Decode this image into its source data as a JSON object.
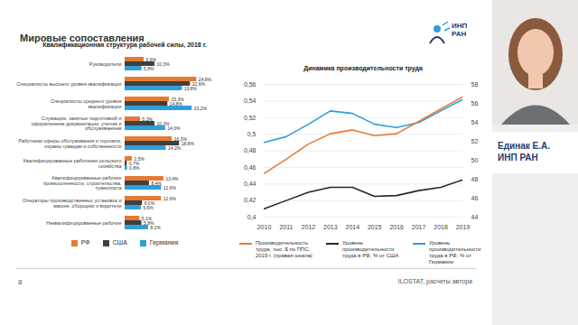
{
  "slide": {
    "title": "Мировые сопоставления",
    "logo": "ИНП РАН",
    "page": "8",
    "source": "ILOSTAT, расчеты автора",
    "speaker": {
      "name": "Единак Е.А.",
      "org": "ИНП РАН"
    }
  },
  "chart_data": [
    {
      "type": "bar",
      "orientation": "horizontal",
      "title": "Квалификационная структура рабочей силы, 2018 г.",
      "categories": [
        "Руководители",
        "Специалисты высшего уровня квалификации",
        "Специалисты среднего уровня квалификации",
        "Служащие, занятые подготовкой и оформлением документации, учетом и обслуживанием",
        "Работники сферы обслуживания и торговли, охраны граждан и собственности",
        "Квалифицированные работники сельского хозяйства",
        "Квалифицированные рабочие промышленности, строительства, транспорта",
        "Операторы производственных установок и машин, сборщики и водители",
        "Неквалифицированные рабочие"
      ],
      "series": [
        {
          "name": "РФ",
          "color": "#e57a33",
          "values": [
            6.6,
            24.8,
            15.3,
            5.3,
            16.3,
            2.5,
            13.4,
            12.6,
            5.1
          ],
          "value_labels": [
            "6,6%",
            "24,8%",
            "15,3%",
            "5,3%",
            "16,3%",
            "2,5%",
            "13,4%",
            "12,6%",
            "5,1%"
          ]
        },
        {
          "name": "США",
          "color": "#404040",
          "values": [
            10.3,
            22.6,
            14.8,
            10.3,
            18.8,
            0.7,
            8.4,
            6.0,
            5.8
          ],
          "value_labels": [
            "10,3%",
            "22,6%",
            "14,8%",
            "10,3%",
            "18,8%",
            "0,7%",
            "8,4%",
            "6,0%",
            "5,8%"
          ]
        },
        {
          "name": "Германия",
          "color": "#2f9fd8",
          "values": [
            5.8,
            19.8,
            23.2,
            14.0,
            14.2,
            0.8,
            12.6,
            5.6,
            8.1
          ],
          "value_labels": [
            "5,8%",
            "19,8%",
            "23,2%",
            "14,0%",
            "14,2%",
            "0,8%",
            "12,6%",
            "5,6%",
            "8,1%"
          ]
        }
      ],
      "xlim": [
        0,
        30
      ],
      "tick_labels": "y",
      "data_labels": true,
      "legend": "bottom"
    },
    {
      "type": "line",
      "title": "Динамика производительности труда",
      "x": [
        2010,
        2011,
        2012,
        2013,
        2014,
        2015,
        2016,
        2017,
        2018,
        2019
      ],
      "xlim": [
        2010,
        2019
      ],
      "xticks": [
        2010,
        2011,
        2012,
        2013,
        2014,
        2015,
        2016,
        2017,
        2018,
        2019
      ],
      "ylim": [
        0.4,
        0.56
      ],
      "yticks": [
        {
          "value": 0.4,
          "label": "0,4"
        },
        {
          "value": 0.42,
          "label": "0,42"
        },
        {
          "value": 0.44,
          "label": "0,44"
        },
        {
          "value": 0.46,
          "label": "0,46"
        },
        {
          "value": 0.48,
          "label": "0,48"
        },
        {
          "value": 0.5,
          "label": "0,5"
        },
        {
          "value": 0.52,
          "label": "0,52"
        },
        {
          "value": 0.54,
          "label": "0,54"
        },
        {
          "value": 0.56,
          "label": "0,56"
        }
      ],
      "y2lim": [
        44,
        58
      ],
      "y2ticks": [
        44,
        46,
        48,
        50,
        52,
        54,
        56,
        58
      ],
      "grid": true,
      "legend": "bottom",
      "series": [
        {
          "name": "Производительность труда, тыс. $ по ППС, 2019 г. (правая шкала)",
          "color": "#e57a33",
          "axis": "y2",
          "values": [
            48.6,
            50.1,
            51.7,
            52.8,
            53.2,
            52.6,
            52.8,
            54.1,
            55.4,
            56.7
          ]
        },
        {
          "name": "Уровень производительности труда в РФ, % от США",
          "color": "#262626",
          "values": [
            0.41,
            0.42,
            0.43,
            0.436,
            0.436,
            0.425,
            0.426,
            0.432,
            0.436,
            0.445
          ]
        },
        {
          "name": "Уровень производительности труда в РФ, % от Германии",
          "color": "#2f9fd8",
          "values": [
            0.49,
            0.497,
            0.512,
            0.528,
            0.525,
            0.512,
            0.508,
            0.514,
            0.528,
            0.542
          ]
        }
      ]
    }
  ]
}
